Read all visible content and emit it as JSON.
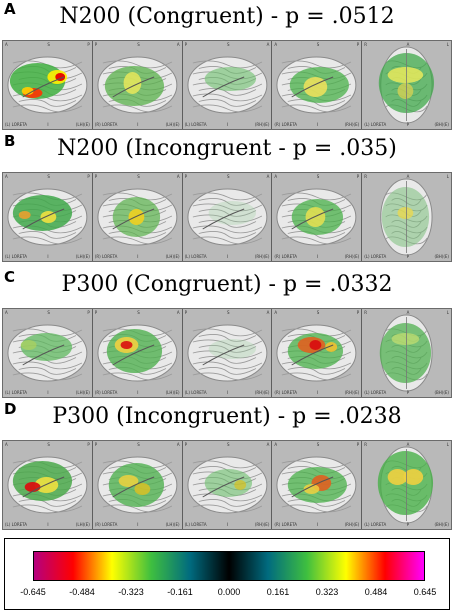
{
  "sections": [
    {
      "letter": "A",
      "title": "N200 (Congruent) - p = .0512"
    },
    {
      "letter": "B",
      "title": "N200 (Incongruent - p = .035)"
    },
    {
      "letter": "C",
      "title": "P300 (Congruent) - p = .0332"
    },
    {
      "letter": "D",
      "title": "P300 (Incongruent) - p = .0238"
    }
  ],
  "panel_labels": {
    "tl": [
      "A",
      "P",
      "P",
      "A",
      "R"
    ],
    "tc": [
      "S",
      "S",
      "S",
      "S",
      "A"
    ],
    "tr": [
      "P",
      "A",
      "A",
      "P",
      "L"
    ],
    "bl": [
      "(L) LORETA",
      "(R) LORETA",
      "(L) LORETA",
      "(R) LORETA",
      "(L) LORETA"
    ],
    "bc": [
      "I",
      "I",
      "I",
      "I",
      "P"
    ],
    "br": [
      "(LH)(E)",
      "(LH)(E)",
      "(RH)(E)",
      "(RH)(E)",
      "(BH)(E)"
    ]
  },
  "colorbar": {
    "ticks": [
      "-0.645",
      "-0.484",
      "-0.323",
      "-0.161",
      "0.000",
      "0.161",
      "0.323",
      "0.484",
      "0.645"
    ],
    "colors": [
      "#b5007f",
      "#ff0000",
      "#ffff00",
      "#3fbf3f",
      "#006b7f",
      "#000000",
      "#006b7f",
      "#3fbf3f",
      "#ffff00",
      "#ff0000",
      "#ff00ff"
    ]
  }
}
